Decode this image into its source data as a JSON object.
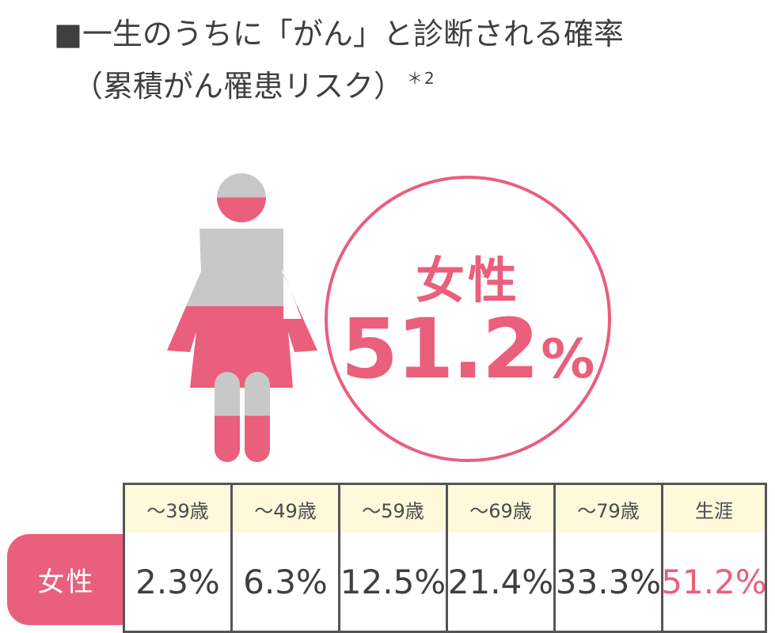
{
  "title": {
    "line1": "■一生のうちに「がん」と診断される確率",
    "line2": "（累積がん罹患リスク）",
    "superscript": "＊2"
  },
  "hero": {
    "label": "女性",
    "value": "51.2",
    "unit": "%"
  },
  "figure": {
    "icon": "female-figure-icon",
    "fill_fraction": 0.512,
    "colors": {
      "upper": "#c8c8c8",
      "lower": "#e95f7c"
    }
  },
  "table": {
    "row_label": "女性",
    "columns": [
      {
        "header": "〜39歳",
        "value": "2.3%"
      },
      {
        "header": "〜49歳",
        "value": "6.3%"
      },
      {
        "header": "〜59歳",
        "value": "12.5%"
      },
      {
        "header": "〜69歳",
        "value": "21.4%"
      },
      {
        "header": "〜79歳",
        "value": "33.3%"
      },
      {
        "header": "生涯",
        "value": "51.2%"
      }
    ]
  },
  "colors": {
    "accent": "#e95f7c",
    "header_bg": "#fff9dc",
    "gray": "#c8c8c8",
    "text": "#3f3f3f"
  },
  "chart_data": {
    "type": "table",
    "series": [
      {
        "name": "女性",
        "values": [
          2.3,
          6.3,
          12.5,
          21.4,
          33.3,
          51.2
        ]
      }
    ],
    "categories": [
      "〜39歳",
      "〜49歳",
      "〜59歳",
      "〜69歳",
      "〜79歳",
      "生涯"
    ],
    "highlight": {
      "label": "女性",
      "value": 51.2,
      "unit": "%"
    },
    "title": "■一生のうちに「がん」と診断される確率",
    "subtitle": "（累積がん罹患リスク）",
    "note": "＊2"
  }
}
